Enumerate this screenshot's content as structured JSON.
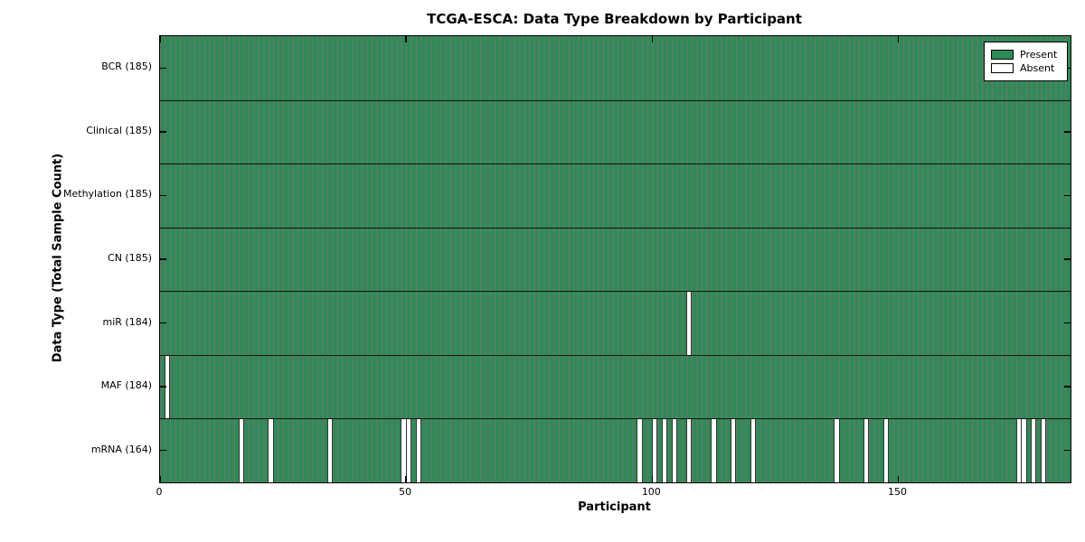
{
  "title": "TCGA-ESCA: Data Type Breakdown by Participant",
  "axes": {
    "xlabel": "Participant",
    "ylabel": "Data Type (Total Sample Count)",
    "x_tick_labels": [
      "0",
      "50",
      "100",
      "150"
    ]
  },
  "legend": {
    "present_label": "Present",
    "absent_label": "Absent"
  },
  "colors": {
    "present": "#2e8b57",
    "absent": "#ffffff",
    "cell_edge": "rgba(0,0,0,0.55)"
  },
  "chart_data": {
    "type": "heatmap",
    "title": "TCGA-ESCA: Data Type Breakdown by Participant",
    "xlabel": "Participant",
    "ylabel": "Data Type (Total Sample Count)",
    "x_range": [
      0,
      185
    ],
    "x_ticks": [
      0,
      50,
      100,
      150
    ],
    "n_participants": 185,
    "grid": false,
    "legend_position": "upper right",
    "legend_entries": [
      "Present",
      "Absent"
    ],
    "value_encoding": {
      "present": 1,
      "absent": 0
    },
    "rows": [
      {
        "name": "BCR",
        "label": "BCR (185)",
        "total": 185,
        "absent_participants": []
      },
      {
        "name": "Clinical",
        "label": "Clinical (185)",
        "total": 185,
        "absent_participants": []
      },
      {
        "name": "Methylation",
        "label": "Methylation (185)",
        "total": 185,
        "absent_participants": []
      },
      {
        "name": "CN",
        "label": "CN (185)",
        "total": 185,
        "absent_participants": []
      },
      {
        "name": "miR",
        "label": "miR (184)",
        "total": 184,
        "absent_participants": [
          107
        ]
      },
      {
        "name": "MAF",
        "label": "MAF (184)",
        "total": 184,
        "absent_participants": [
          1
        ]
      },
      {
        "name": "mRNA",
        "label": "mRNA (164)",
        "total": 164,
        "absent_participants": [
          16,
          22,
          34,
          49,
          50,
          52,
          97,
          100,
          102,
          104,
          107,
          112,
          116,
          120,
          137,
          143,
          147,
          174,
          175,
          177,
          179
        ]
      }
    ]
  }
}
